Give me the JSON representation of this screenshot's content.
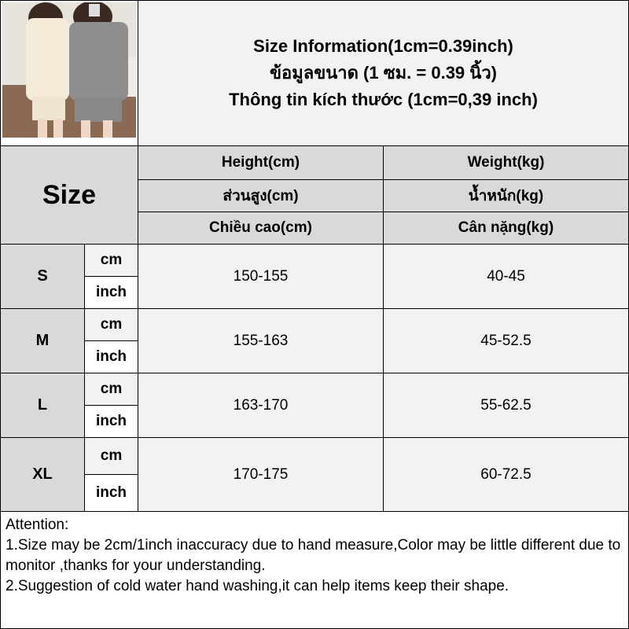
{
  "header": {
    "title_en": "Size Information(1cm=0.39inch)",
    "title_th": "ข้อมูลขนาด (1 ซม. = 0.39 นิ้ว)",
    "title_vi": "Thông tin kích thước (1cm=0,39 inch)"
  },
  "table": {
    "size_label": "Size",
    "height_headers": [
      "Height(cm)",
      "ส่วนสูง(cm)",
      "Chiều cao(cm)"
    ],
    "weight_headers": [
      "Weight(kg)",
      "น้ำหนัก(kg)",
      "Cân nặng(kg)"
    ],
    "unit_cm": "cm",
    "unit_inch": "inch",
    "rows": [
      {
        "size": "S",
        "height": "150-155",
        "weight": "40-45"
      },
      {
        "size": "M",
        "height": "155-163",
        "weight": "45-52.5"
      },
      {
        "size": "L",
        "height": "163-170",
        "weight": "55-62.5"
      },
      {
        "size": "XL",
        "height": "170-175",
        "weight": "60-72.5"
      }
    ]
  },
  "notes": {
    "heading": "Attention:",
    "line1": "1.Size may be 2cm/1inch inaccuracy due to hand measure,Color may be little different due to monitor ,thanks for your understanding.",
    "line2": "2.Suggestion of cold water hand washing,it can help items keep their shape."
  },
  "colors": {
    "header_gray": "#d9d9d9",
    "light_gray": "#f2f2f2",
    "border": "#000000"
  }
}
